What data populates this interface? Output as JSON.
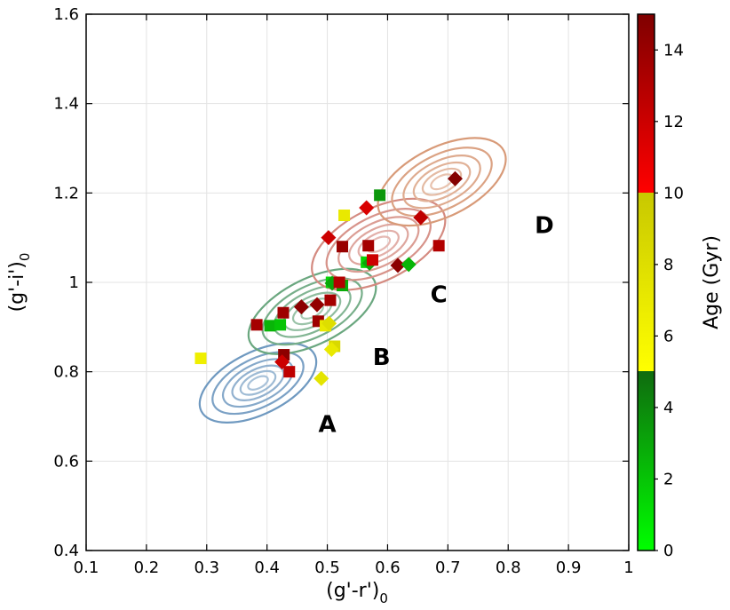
{
  "chart_data": {
    "type": "scatter",
    "xlabel": "(g'-r')",
    "xlabel_sub": "0",
    "ylabel": "(g'-i')",
    "ylabel_sub": "0",
    "xlim": [
      0.1,
      1.0
    ],
    "ylim": [
      0.4,
      1.6
    ],
    "xticks": [
      0.1,
      0.2,
      0.3,
      0.4,
      0.5,
      0.6,
      0.7,
      0.8,
      0.9,
      1
    ],
    "xtick_labels": [
      "0.1",
      "0.2",
      "0.3",
      "0.4",
      "0.5",
      "0.6",
      "0.7",
      "0.8",
      "0.9",
      "1"
    ],
    "yticks": [
      0.4,
      0.6,
      0.8,
      1.0,
      1.2,
      1.4,
      1.6
    ],
    "ytick_labels": [
      "0.4",
      "0.6",
      "0.8",
      "1",
      "1.2",
      "1.4",
      "1.6"
    ],
    "grid": true,
    "colorbar": {
      "label": "Age (Gyr)",
      "range": [
        0,
        15
      ],
      "ticks": [
        0,
        2,
        4,
        6,
        8,
        10,
        12,
        14
      ],
      "tick_labels": [
        "0",
        "2",
        "4",
        "6",
        "8",
        "10",
        "12",
        "14"
      ],
      "bands": [
        {
          "from": 0,
          "to": 5,
          "colors": [
            "#00ff00",
            "#0f6b0f"
          ]
        },
        {
          "from": 5,
          "to": 10,
          "colors": [
            "#ffff00",
            "#c8c800"
          ]
        },
        {
          "from": 10,
          "to": 15,
          "colors": [
            "#ff0000",
            "#7f0000"
          ]
        }
      ]
    },
    "regions": [
      {
        "label": "A",
        "cx": 0.385,
        "cy": 0.775,
        "rx": 0.105,
        "ry": 0.112,
        "tilt": 0.5,
        "color": "#6f99c0",
        "text_x": 0.5,
        "text_y": 0.665
      },
      {
        "label": "B",
        "cx": 0.475,
        "cy": 0.935,
        "rx": 0.115,
        "ry": 0.118,
        "tilt": 0.5,
        "color": "#6aa77f",
        "text_x": 0.59,
        "text_y": 0.815
      },
      {
        "label": "C",
        "cx": 0.585,
        "cy": 1.085,
        "rx": 0.12,
        "ry": 0.13,
        "tilt": 0.5,
        "color": "#d48a80",
        "text_x": 0.685,
        "text_y": 0.955
      },
      {
        "label": "D",
        "cx": 0.69,
        "cy": 1.225,
        "rx": 0.115,
        "ry": 0.125,
        "tilt": 0.5,
        "color": "#d89a78",
        "text_x": 0.86,
        "text_y": 1.11
      }
    ],
    "points": [
      {
        "x": 0.29,
        "y": 0.83,
        "age": 6.5,
        "marker": "square"
      },
      {
        "x": 0.383,
        "y": 0.905,
        "age": 13.5,
        "marker": "square"
      },
      {
        "x": 0.405,
        "y": 0.903,
        "age": 2.5,
        "marker": "square"
      },
      {
        "x": 0.422,
        "y": 0.905,
        "age": 2.0,
        "marker": "square"
      },
      {
        "x": 0.427,
        "y": 0.932,
        "age": 13.8,
        "marker": "square"
      },
      {
        "x": 0.428,
        "y": 0.838,
        "age": 14.5,
        "marker": "square"
      },
      {
        "x": 0.425,
        "y": 0.822,
        "age": 12.0,
        "marker": "diamond"
      },
      {
        "x": 0.437,
        "y": 0.8,
        "age": 12.5,
        "marker": "square"
      },
      {
        "x": 0.457,
        "y": 0.945,
        "age": 14.5,
        "marker": "diamond"
      },
      {
        "x": 0.483,
        "y": 0.95,
        "age": 14.2,
        "marker": "diamond"
      },
      {
        "x": 0.485,
        "y": 0.913,
        "age": 13.8,
        "marker": "square"
      },
      {
        "x": 0.49,
        "y": 0.785,
        "age": 7.5,
        "marker": "diamond"
      },
      {
        "x": 0.497,
        "y": 0.903,
        "age": 7.0,
        "marker": "square"
      },
      {
        "x": 0.503,
        "y": 0.908,
        "age": 8.0,
        "marker": "diamond"
      },
      {
        "x": 0.505,
        "y": 0.96,
        "age": 13.5,
        "marker": "square"
      },
      {
        "x": 0.507,
        "y": 1.0,
        "age": 1.5,
        "marker": "square"
      },
      {
        "x": 0.508,
        "y": 0.998,
        "age": 3.0,
        "marker": "diamond"
      },
      {
        "x": 0.512,
        "y": 0.857,
        "age": 8.5,
        "marker": "square"
      },
      {
        "x": 0.507,
        "y": 0.85,
        "age": 7.0,
        "marker": "diamond"
      },
      {
        "x": 0.525,
        "y": 0.993,
        "age": 2.8,
        "marker": "square"
      },
      {
        "x": 0.52,
        "y": 1.0,
        "age": 13.0,
        "marker": "square"
      },
      {
        "x": 0.502,
        "y": 1.1,
        "age": 12.0,
        "marker": "diamond"
      },
      {
        "x": 0.525,
        "y": 1.08,
        "age": 14.0,
        "marker": "square"
      },
      {
        "x": 0.528,
        "y": 1.15,
        "age": 7.0,
        "marker": "square"
      },
      {
        "x": 0.565,
        "y": 1.167,
        "age": 11.5,
        "marker": "diamond"
      },
      {
        "x": 0.568,
        "y": 1.082,
        "age": 13.5,
        "marker": "square"
      },
      {
        "x": 0.565,
        "y": 1.045,
        "age": 1.5,
        "marker": "square"
      },
      {
        "x": 0.57,
        "y": 1.043,
        "age": 3.0,
        "marker": "diamond"
      },
      {
        "x": 0.575,
        "y": 1.05,
        "age": 12.0,
        "marker": "square"
      },
      {
        "x": 0.587,
        "y": 1.195,
        "age": 3.5,
        "marker": "square"
      },
      {
        "x": 0.617,
        "y": 1.038,
        "age": 14.5,
        "marker": "diamond"
      },
      {
        "x": 0.635,
        "y": 1.04,
        "age": 2.5,
        "marker": "diamond"
      },
      {
        "x": 0.655,
        "y": 1.145,
        "age": 12.5,
        "marker": "diamond"
      },
      {
        "x": 0.685,
        "y": 1.082,
        "age": 13.0,
        "marker": "square"
      },
      {
        "x": 0.712,
        "y": 1.232,
        "age": 14.8,
        "marker": "diamond"
      }
    ]
  }
}
